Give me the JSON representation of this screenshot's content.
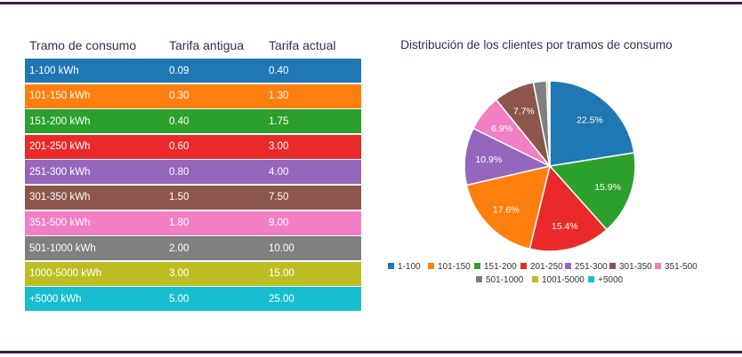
{
  "table": {
    "headers": [
      "Tramo de consumo",
      "Tarifa antigua",
      "Tarifa actual"
    ],
    "rows": [
      {
        "tramo": "1-100 kWh",
        "antigua": "0.09",
        "actual": "0.40",
        "color": "#1f77b4"
      },
      {
        "tramo": "101-150 kWh",
        "antigua": "0.30",
        "actual": "1.30",
        "color": "#ff7f0e"
      },
      {
        "tramo": "151-200 kWh",
        "antigua": "0.40",
        "actual": "1.75",
        "color": "#2ca02c"
      },
      {
        "tramo": "201-250 kWh",
        "antigua": "0.60",
        "actual": "3.00",
        "color": "#ea2a2a"
      },
      {
        "tramo": "251-300 kWh",
        "antigua": "0.80",
        "actual": "4.00",
        "color": "#9467bd"
      },
      {
        "tramo": "301-350 kWh",
        "antigua": "1.50",
        "actual": "7.50",
        "color": "#8c564b"
      },
      {
        "tramo": "351-500 kWh",
        "antigua": "1.80",
        "actual": "9.00",
        "color": "#f27fc4"
      },
      {
        "tramo": "501-1000 kWh",
        "antigua": "2.00",
        "actual": "10.00",
        "color": "#7f7f7f"
      },
      {
        "tramo": "1000-5000 kWh",
        "antigua": "3.00",
        "actual": "15.00",
        "color": "#bcbd22"
      },
      {
        "tramo": "+5000 kWh",
        "antigua": "5.00",
        "actual": "25.00",
        "color": "#17becf"
      }
    ]
  },
  "chart_data": {
    "type": "pie",
    "title": "Distribución de los clientes por tramos de consumo",
    "categories": [
      "1-100",
      "101-150",
      "151-200",
      "201-250",
      "251-300",
      "301-350",
      "351-500",
      "501-1000",
      "1001-5000",
      "+5000"
    ],
    "values": [
      22.5,
      17.6,
      15.9,
      15.4,
      10.9,
      7.7,
      6.9,
      2.5,
      0.4,
      0.2
    ],
    "labels": [
      "22.5%",
      "17.6%",
      "15.9%",
      "15.4%",
      "10.9%",
      "7.7%",
      "6.9%",
      "",
      "",
      ""
    ],
    "slice_order": [
      "1-100",
      "151-200",
      "201-250",
      "101-150",
      "251-300",
      "351-500",
      "301-350",
      "501-1000",
      "1001-5000",
      "+5000"
    ],
    "colors": [
      "#1f77b4",
      "#ff7f0e",
      "#2ca02c",
      "#ea2a2a",
      "#9467bd",
      "#8c564b",
      "#f27fc4",
      "#7f7f7f",
      "#bcbd22",
      "#17becf"
    ],
    "legend_position": "bottom"
  }
}
